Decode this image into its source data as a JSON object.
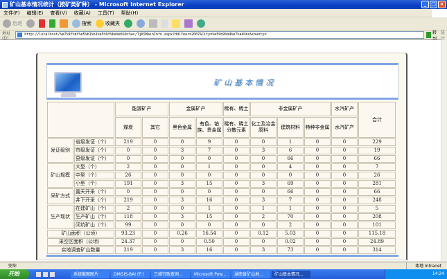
{
  "window": {
    "title": "矿山基本情况统计（按矿类矿种） - Microsoft Internet Explorer"
  },
  "menu": [
    "文件(F)",
    "编辑(E)",
    "查看(V)",
    "收藏(A)",
    "工具(T)",
    "帮助(H)"
  ],
  "toolbar": {
    "back": "后退",
    "search": "搜索",
    "favorites": "收藏夹"
  },
  "address": {
    "label": "地址(D)",
    "url": "http://localhost/%e7%9f%bf%e5%b1%b1%e5%9f%ba%e6%9c%ac/TjKSMainInfo.aspx?ddlYear=2007&City=%e5%b9%b4%e7%a4%bc&county=",
    "go": "转到",
    "links": "链接"
  },
  "banner": {
    "title": "矿山基本情况"
  },
  "table": {
    "groups": [
      "能源矿产",
      "金属矿产",
      "稀有、稀土",
      "非金属矿产",
      "水汽矿产"
    ],
    "total": "合计",
    "columns": [
      "煤炭",
      "其它",
      "黑色金属",
      "有色、铂族、贵金属",
      "稀有、稀土分散元素",
      "化工及冶金原料",
      "建筑材料",
      "特种非金属",
      "水汽矿产"
    ],
    "sections": [
      {
        "label": "发证级别",
        "rows": [
          {
            "label": "省级发证（个）",
            "values": [
              "219",
              "0",
              "0",
              "9",
              "0",
              "0",
              "1",
              "0",
              "0",
              "229"
            ]
          },
          {
            "label": "市级发证（个）",
            "values": [
              "0",
              "0",
              "3",
              "7",
              "0",
              "3",
              "6",
              "0",
              "0",
              "19"
            ]
          },
          {
            "label": "县级发证（个）",
            "values": [
              "0",
              "0",
              "0",
              "0",
              "0",
              "0",
              "66",
              "0",
              "0",
              "66"
            ]
          }
        ]
      },
      {
        "label": "矿山规模",
        "rows": [
          {
            "label": "大型（个）",
            "values": [
              "2",
              "0",
              "0",
              "1",
              "0",
              "0",
              "4",
              "0",
              "0",
              "7"
            ]
          },
          {
            "label": "中型（个）",
            "values": [
              "26",
              "0",
              "0",
              "0",
              "0",
              "0",
              "0",
              "0",
              "0",
              "26"
            ]
          },
          {
            "label": "小型（个）",
            "values": [
              "191",
              "0",
              "3",
              "15",
              "0",
              "3",
              "69",
              "0",
              "0",
              "281"
            ]
          }
        ]
      },
      {
        "label": "采矿方式",
        "rows": [
          {
            "label": "露天开采（个）",
            "values": [
              "0",
              "0",
              "0",
              "0",
              "0",
              "0",
              "66",
              "0",
              "0",
              "66"
            ]
          },
          {
            "label": "井下开采（个）",
            "values": [
              "219",
              "0",
              "3",
              "16",
              "0",
              "3",
              "7",
              "0",
              "0",
              "248"
            ]
          }
        ]
      },
      {
        "label": "生产现状",
        "rows": [
          {
            "label": "在建矿山（个）",
            "values": [
              "2",
              "0",
              "0",
              "1",
              "0",
              "1",
              "1",
              "0",
              "0",
              "5"
            ]
          },
          {
            "label": "生产矿山（个）",
            "values": [
              "118",
              "0",
              "3",
              "15",
              "0",
              "2",
              "70",
              "0",
              "0",
              "208"
            ]
          },
          {
            "label": "闭坑矿山（个）",
            "values": [
              "99",
              "0",
              "0",
              "0",
              "0",
              "0",
              "2",
              "0",
              "0",
              "101"
            ]
          }
        ]
      }
    ],
    "summary": [
      {
        "label": "矿山面积（公顷）",
        "values": [
          "93.23",
          "0",
          "0.26",
          "16.54",
          "0",
          "0.12",
          "5.03",
          "0",
          "0",
          "115.18"
        ]
      },
      {
        "label": "采空区面积（公顷）",
        "values": [
          "24.37",
          "0",
          "0",
          "0.50",
          "0",
          "0",
          "0.02",
          "0",
          "0",
          "24.89"
        ]
      },
      {
        "label": "实地调查矿山数量",
        "values": [
          "219",
          "0",
          "3",
          "16",
          "0",
          "3",
          "73",
          "0",
          "0",
          "314"
        ]
      }
    ]
  },
  "status": {
    "text": "完毕",
    "zone": "本地 Intranet"
  },
  "taskbar": {
    "start": "开始",
    "tasks": [
      "系统截图图片",
      "DMGIS-BAI (F:)",
      "三维行政查询...",
      "Microsoft Pow...",
      "湖南省矿山地...",
      "矿山基本情况..."
    ],
    "clock": "14:24"
  }
}
